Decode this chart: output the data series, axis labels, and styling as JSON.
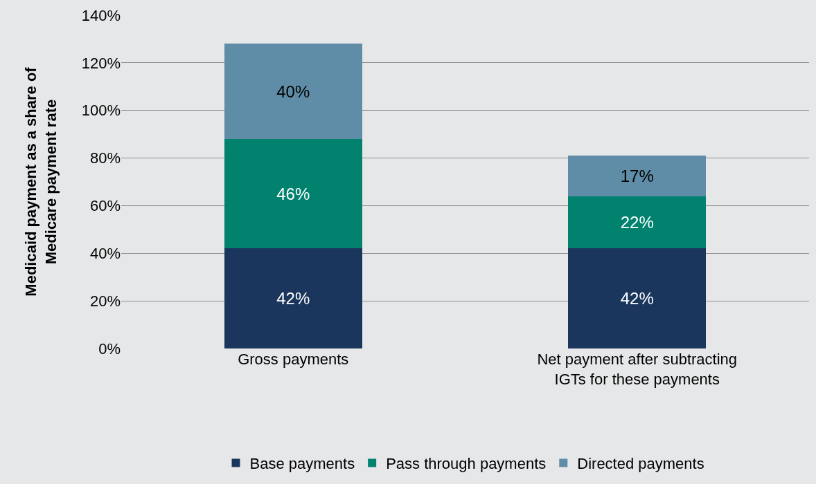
{
  "chart_data": {
    "type": "bar",
    "stacked": true,
    "ylabel": "Medicaid payment as a share of Medicare payment rate",
    "categories": [
      "Gross payments",
      "Net payment after subtracting IGTs for these payments"
    ],
    "series": [
      {
        "name": "Base payments",
        "color": "#1b365d",
        "values": [
          42,
          42
        ],
        "value_labels": [
          "42%",
          "42%"
        ]
      },
      {
        "name": "Pass through payments",
        "color": "#00826f",
        "values": [
          46,
          22
        ],
        "value_labels": [
          "46%",
          "22%"
        ]
      },
      {
        "name": "Directed payments",
        "color": "#5f8ca6",
        "values": [
          40,
          17
        ],
        "value_labels": [
          "40%",
          "17%"
        ]
      }
    ],
    "ylim": [
      0,
      140
    ],
    "yticks": [
      {
        "value": 0,
        "label": "0%"
      },
      {
        "value": 20,
        "label": "20%"
      },
      {
        "value": 40,
        "label": "40%"
      },
      {
        "value": 60,
        "label": "60%"
      },
      {
        "value": 80,
        "label": "80%"
      },
      {
        "value": 100,
        "label": "100%"
      },
      {
        "value": 120,
        "label": "120%"
      },
      {
        "value": 140,
        "label": "140%"
      }
    ],
    "grid": "y",
    "legend": "bottom"
  }
}
